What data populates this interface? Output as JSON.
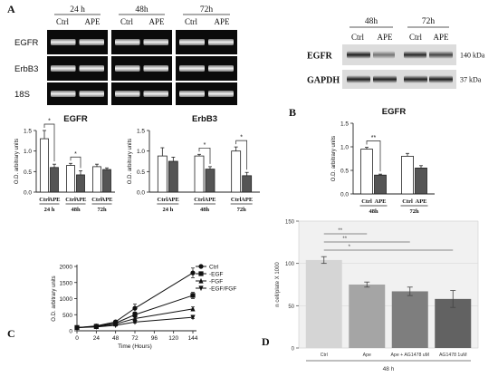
{
  "panel_letters": {
    "a": "A",
    "b": "B",
    "c": "C",
    "d": "D"
  },
  "gel_rt": {
    "groups": [
      "24 h",
      "48h",
      "72h"
    ],
    "lanes": [
      "Ctrl",
      "APE"
    ],
    "rows": [
      "EGFR",
      "ErbB3",
      "18S"
    ]
  },
  "gel_wb": {
    "groups": [
      "48h",
      "72h"
    ],
    "lanes": [
      "Ctrl",
      "APE"
    ],
    "rows": [
      "EGFR",
      "GAPDH"
    ],
    "weights": [
      "140 kDa",
      "37 kDa"
    ]
  },
  "chart_data": [
    {
      "id": "egfr-mrna",
      "type": "bar",
      "title": "EGFR",
      "ylabel": "O.D. arbitrary units",
      "ylim": [
        0,
        1.5
      ],
      "yticks": [
        "0.0",
        "0.5",
        "1.0",
        "1.5"
      ],
      "categories": [
        "24 h",
        "48h",
        "72h"
      ],
      "series": [
        {
          "name": "Ctrl",
          "values": [
            1.3,
            0.65,
            0.62
          ],
          "errors": [
            0.2,
            0.05,
            0.06
          ]
        },
        {
          "name": "APE",
          "values": [
            0.6,
            0.42,
            0.55
          ],
          "errors": [
            0.08,
            0.1,
            0.04
          ]
        }
      ],
      "significance": [
        "*",
        "*",
        ""
      ]
    },
    {
      "id": "erbb3-mrna",
      "type": "bar",
      "title": "ErbB3",
      "ylabel": "O.D. arbitrary units",
      "ylim": [
        0,
        1.5
      ],
      "yticks": [
        "0.0",
        "0.5",
        "1.0",
        "1.5"
      ],
      "categories": [
        "24 h",
        "48h",
        "72h"
      ],
      "series": [
        {
          "name": "Ctrl",
          "values": [
            0.88,
            0.88,
            1.0
          ],
          "errors": [
            0.2,
            0.04,
            0.1
          ]
        },
        {
          "name": "APE",
          "values": [
            0.75,
            0.56,
            0.4
          ],
          "errors": [
            0.1,
            0.06,
            0.08
          ]
        }
      ],
      "significance": [
        "",
        "*",
        "*"
      ]
    },
    {
      "id": "egfr-protein",
      "type": "bar",
      "title": "EGFR",
      "ylabel": "O.D. arbitrary units",
      "ylim": [
        0,
        1.5
      ],
      "yticks": [
        "0.0",
        "0.5",
        "1.0",
        "1.5"
      ],
      "categories": [
        "48h",
        "72h"
      ],
      "series": [
        {
          "name": "Ctrl",
          "values": [
            0.95,
            0.8
          ],
          "errors": [
            0.04,
            0.06
          ]
        },
        {
          "name": "APE",
          "values": [
            0.4,
            0.55
          ],
          "errors": [
            0.02,
            0.05
          ]
        }
      ],
      "significance": [
        "**",
        ""
      ]
    },
    {
      "id": "growth-curve",
      "type": "line",
      "xlabel": "Time (Hours)",
      "ylabel": "O.D. arbitrary units",
      "xlim": [
        0,
        144
      ],
      "ylim": [
        0,
        2000
      ],
      "xticks": [
        "0",
        "24",
        "48",
        "72",
        "96",
        "120",
        "144"
      ],
      "yticks": [
        "0",
        "500",
        "1000",
        "1500",
        "2000"
      ],
      "x": [
        0,
        24,
        48,
        72,
        144
      ],
      "series": [
        {
          "name": "Ctrl",
          "values": [
            100,
            150,
            280,
            700,
            1800
          ],
          "errors": [
            20,
            20,
            40,
            130,
            150
          ]
        },
        {
          "name": "-EGF",
          "values": [
            100,
            140,
            240,
            500,
            1100
          ],
          "errors": [
            20,
            20,
            30,
            80,
            100
          ]
        },
        {
          "name": "-FGF",
          "values": [
            100,
            130,
            210,
            380,
            680
          ],
          "errors": [
            15,
            15,
            25,
            50,
            60
          ]
        },
        {
          "name": "-EGF/FGF",
          "values": [
            100,
            120,
            170,
            270,
            420
          ],
          "errors": [
            15,
            15,
            20,
            30,
            40
          ]
        }
      ],
      "markers": [
        "circle",
        "square",
        "triangle-up",
        "triangle-down"
      ]
    },
    {
      "id": "cell-count",
      "type": "bar",
      "xlabel": "48 h",
      "ylabel": "n cell/plate X 1000",
      "ylim": [
        0,
        150
      ],
      "yticks": [
        "0",
        "50",
        "100",
        "150"
      ],
      "categories": [
        "Ctrl",
        "Ape",
        "Ape + AG1478 uM",
        "AG1478 1uM"
      ],
      "values": [
        104,
        75,
        67,
        58
      ],
      "errors": [
        4,
        3,
        5,
        10
      ],
      "colors": [
        "#d5d5d5",
        "#a5a5a5",
        "#7e7e7e",
        "#626262"
      ],
      "significance": [
        {
          "from": 0,
          "to": 1,
          "label": "**"
        },
        {
          "from": 0,
          "to": 2,
          "label": "**"
        },
        {
          "from": 0,
          "to": 3,
          "label": "*"
        }
      ]
    }
  ]
}
